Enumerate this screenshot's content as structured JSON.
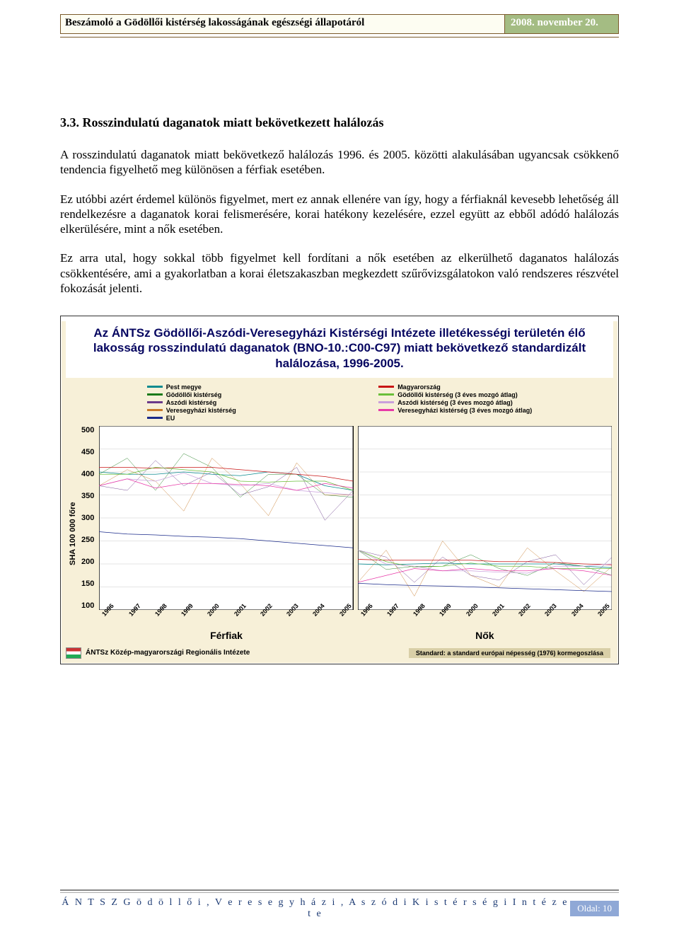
{
  "header": {
    "title": "Beszámoló a Gödöllői kistérség lakosságának egészségi állapotáról",
    "date": "2008. november 20."
  },
  "section": {
    "number_title": "3.3. Rosszindulatú daganatok miatt bekövetkezett halálozás",
    "p1": "A rosszindulatú daganatok miatt bekövetkező halálozás 1996. és 2005. közötti alakulásában ugyancsak csökkenő tendencia figyelhető meg különösen a férfiak esetében.",
    "p2": "Ez utóbbi azért érdemel különös figyelmet, mert ez annak ellenére van így, hogy a férfiaknál kevesebb lehetőség áll rendelkezésre a daganatok korai felismerésére, korai hatékony kezelésére, ezzel együtt az ebből adódó halálozás elkerülésére, mint a nők esetében.",
    "p3": "Ez arra utal, hogy sokkal több figyelmet kell fordítani a nők esetében az elkerülhető daganatos halálozás csökkentésére, ami a gyakorlatban a korai életszakaszban megkezdett szűrővizsgálatokon való rendszeres részvétel fokozását jelenti."
  },
  "chart": {
    "title": "Az ÁNTSz Gödöllői-Aszódi-Veresegyházi Kistérségi Intézete illetékességi területén élő lakosság rosszindulatú daganatok (BNO-10.:C00-C97) miatt bekövetkező standardizált halálozása, 1996-2005.",
    "title_color": "#060660",
    "background_color": "#f7f0d8",
    "plot_background": "#ffffff",
    "y_label": "SHA 100 000 főre",
    "y_ticks": [
      500,
      450,
      400,
      350,
      300,
      250,
      200,
      150,
      100
    ],
    "ylim": [
      100,
      500
    ],
    "x_ticks": [
      "1996",
      "1997",
      "1998",
      "1999",
      "2000",
      "2001",
      "2002",
      "2003",
      "2004",
      "2005"
    ],
    "panels": [
      {
        "label": "Férfiak",
        "series": {
          "pest": [
            400,
            395,
            395,
            400,
            395,
            392,
            400,
            395,
            370,
            360
          ],
          "godolloi": [
            395,
            430,
            360,
            440,
            410,
            345,
            395,
            395,
            350,
            345
          ],
          "aszodi": [
            370,
            360,
            425,
            370,
            400,
            350,
            368,
            410,
            295,
            360
          ],
          "veresegy": [
            370,
            405,
            380,
            315,
            430,
            375,
            305,
            420,
            350,
            350
          ],
          "eu": [
            270,
            265,
            263,
            260,
            258,
            255,
            250,
            245,
            240,
            235
          ],
          "magyar": [
            410,
            410,
            408,
            410,
            410,
            405,
            400,
            395,
            390,
            380
          ],
          "godolloi_ma": [
            395,
            395,
            410,
            405,
            400,
            380,
            378,
            380,
            380,
            360
          ],
          "aszodi_ma": [
            370,
            385,
            380,
            398,
            375,
            370,
            375,
            360,
            355,
            350
          ],
          "veresegy_ma": [
            370,
            385,
            365,
            375,
            375,
            373,
            370,
            360,
            375,
            365
          ]
        }
      },
      {
        "label": "Nők",
        "series": {
          "pest": [
            200,
            198,
            200,
            202,
            200,
            200,
            200,
            200,
            195,
            192
          ],
          "godolloi": [
            230,
            188,
            195,
            195,
            220,
            190,
            175,
            203,
            195,
            175
          ],
          "aszodi": [
            230,
            215,
            160,
            215,
            175,
            165,
            205,
            220,
            155,
            215
          ],
          "veresegy": [
            160,
            230,
            130,
            250,
            175,
            150,
            235,
            185,
            140,
            195
          ],
          "eu": [
            158,
            155,
            153,
            152,
            150,
            148,
            146,
            144,
            142,
            140
          ],
          "magyar": [
            210,
            208,
            208,
            208,
            208,
            205,
            205,
            203,
            200,
            198
          ],
          "godolloi_ma": [
            230,
            205,
            193,
            195,
            202,
            195,
            195,
            190,
            190,
            190
          ],
          "aszodi_ma": [
            230,
            200,
            195,
            185,
            185,
            182,
            180,
            195,
            195,
            200
          ],
          "veresegy_ma": [
            160,
            175,
            190,
            185,
            190,
            185,
            185,
            190,
            185,
            175
          ]
        }
      }
    ],
    "legend_left": [
      {
        "label": "Pest megye",
        "color": "#0a8a8f"
      },
      {
        "label": "Gödöllői kistérség",
        "color": "#1a7a1a"
      },
      {
        "label": "Aszódi kistérség",
        "color": "#6a3a8a"
      },
      {
        "label": "Veresegyházi kistérség",
        "color": "#c77a2a"
      },
      {
        "label": "EU",
        "color": "#1a2a8a"
      }
    ],
    "legend_right": [
      {
        "label": "Magyarország",
        "color": "#c81414"
      },
      {
        "label": "Gödöllői kistérség (3 éves mozgó átlag)",
        "color": "#6abf3a"
      },
      {
        "label": "Aszódi kistérség (3 éves mozgó átlag)",
        "color": "#c9a0dc"
      },
      {
        "label": "Veresegyházi kistérség (3 éves mozgó átlag)",
        "color": "#e83aa8"
      }
    ],
    "series_style": {
      "pest": {
        "color": "#0a8a8f",
        "width": 2.2
      },
      "godolloi": {
        "color": "#1a7a1a",
        "width": 1.3
      },
      "aszodi": {
        "color": "#6a3a8a",
        "width": 1.3
      },
      "veresegy": {
        "color": "#c77a2a",
        "width": 1.3
      },
      "eu": {
        "color": "#1a2a8a",
        "width": 2.2
      },
      "magyar": {
        "color": "#c81414",
        "width": 2.2
      },
      "godolloi_ma": {
        "color": "#6abf3a",
        "width": 2.0
      },
      "aszodi_ma": {
        "color": "#c9a0dc",
        "width": 2.0
      },
      "veresegy_ma": {
        "color": "#e83aa8",
        "width": 2.0
      }
    },
    "footer_left": "ÁNTSz Közép-magyarországi Regionális Intézete",
    "footer_right": "Standard: a standard európai népesség (1976) kormegoszlása"
  },
  "footer": {
    "org": "Á N T S Z   G ö d ö l l ő i ,   V e r e s e g y h á z i ,   A s z ó d i   K i s t é r s é g i   I n t é z e t e",
    "page": "Oldal: 10"
  }
}
